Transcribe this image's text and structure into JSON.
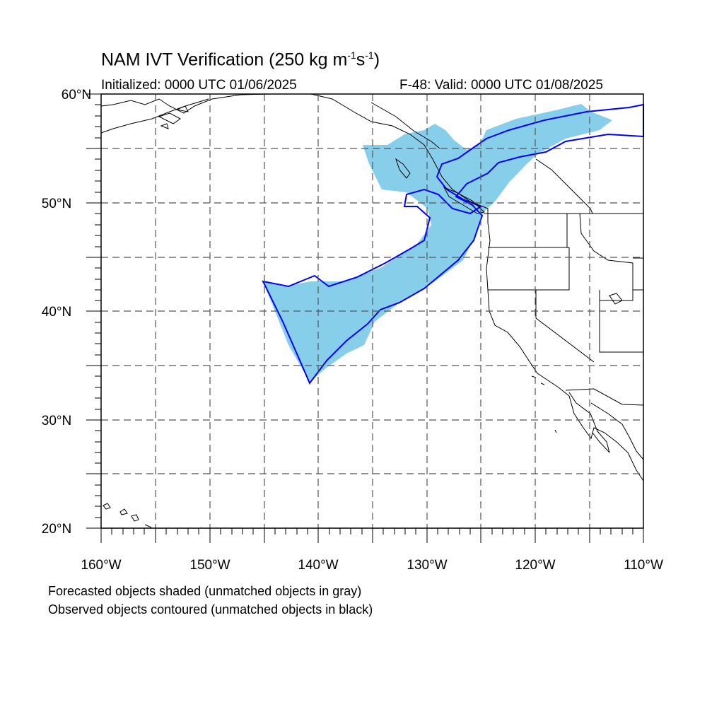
{
  "title": {
    "prefix": "NAM IVT Verification (250 kg m",
    "sup1": "-1",
    "mid": "s",
    "sup2": "-1",
    "suffix": ")"
  },
  "initialized": "Initialized: 0000 UTC 01/06/2025",
  "valid": "F-48: Valid: 0000 UTC 01/08/2025",
  "legend": {
    "forecast": "Forecasted objects shaded (unmatched objects in gray)",
    "observed": "Observed objects contoured (unmatched objects in black)"
  },
  "map": {
    "lon_range": [
      -160,
      -110
    ],
    "lat_range": [
      20,
      60
    ],
    "lat_labels": [
      "60°N",
      "50°N",
      "40°N",
      "30°N",
      "20°N"
    ],
    "lon_labels": [
      "160°W",
      "150°W",
      "140°W",
      "130°W",
      "120°W",
      "110°W"
    ],
    "colors": {
      "forecast_fill": "#87ceeb",
      "observed_contour": "#0000ff",
      "coast": "#000000",
      "grid": "#555555"
    }
  }
}
